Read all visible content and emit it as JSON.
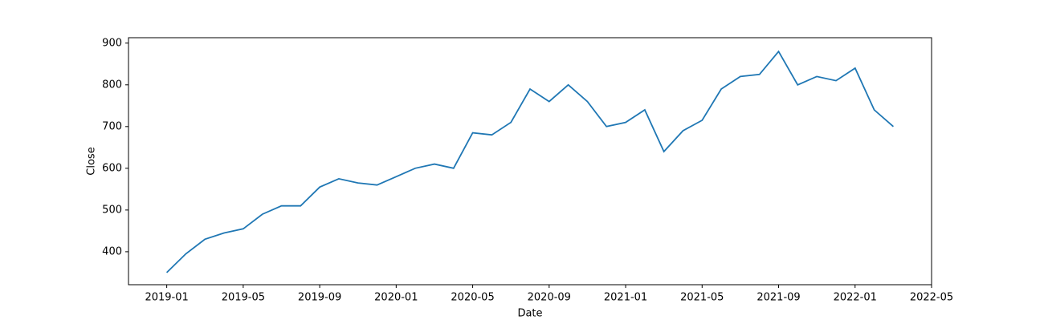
{
  "chart_data": {
    "type": "line",
    "x_label": "Date",
    "y_label": "Close",
    "x": [
      "2019-01",
      "2019-02",
      "2019-03",
      "2019-04",
      "2019-05",
      "2019-06",
      "2019-07",
      "2019-08",
      "2019-09",
      "2019-10",
      "2019-11",
      "2019-12",
      "2020-01",
      "2020-02",
      "2020-03",
      "2020-04",
      "2020-05",
      "2020-06",
      "2020-07",
      "2020-08",
      "2020-09",
      "2020-10",
      "2020-11",
      "2020-12",
      "2021-01",
      "2021-02",
      "2021-03",
      "2021-04",
      "2021-05",
      "2021-06",
      "2021-07",
      "2021-08",
      "2021-09",
      "2021-10",
      "2021-11",
      "2021-12",
      "2022-01",
      "2022-02",
      "2022-03"
    ],
    "series": [
      {
        "name": "Close",
        "color": "#1f77b4",
        "values": [
          350,
          395,
          430,
          445,
          455,
          490,
          510,
          510,
          555,
          575,
          565,
          560,
          580,
          600,
          610,
          600,
          685,
          680,
          710,
          790,
          760,
          800,
          760,
          700,
          710,
          740,
          640,
          690,
          715,
          790,
          820,
          825,
          880,
          800,
          820,
          810,
          840,
          740,
          700
        ]
      }
    ],
    "xlim": [
      "2018-11",
      "2022-05"
    ],
    "xticks": [
      "2019-01",
      "2019-05",
      "2019-09",
      "2020-01",
      "2020-05",
      "2020-09",
      "2021-01",
      "2021-05",
      "2021-09",
      "2022-01",
      "2022-05"
    ],
    "ylim": [
      321,
      913
    ],
    "yticks": [
      400,
      500,
      600,
      700,
      800,
      900
    ]
  }
}
